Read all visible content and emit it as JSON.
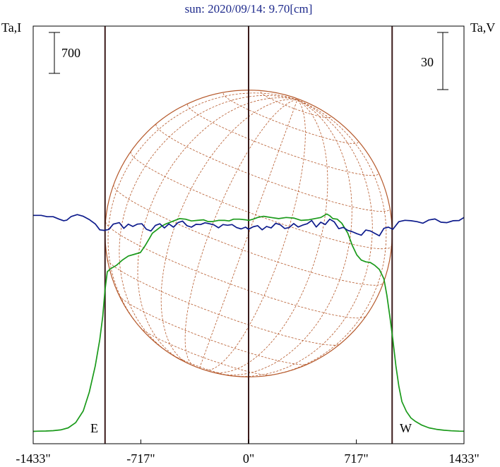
{
  "chart_data": {
    "type": "line",
    "title": "sun: 2020/09/14: 9.70[cm]",
    "left_axis_label": "Ta,I",
    "right_axis_label": "Ta,V",
    "left_scale_bar": "700",
    "right_scale_bar": "30",
    "limb_labels": {
      "east": "E",
      "west": "W"
    },
    "xlim": [
      -1433,
      1433
    ],
    "x_ticks": [
      {
        "value": -1433,
        "label": "-1433\""
      },
      {
        "value": -717,
        "label": "-717\""
      },
      {
        "value": 0,
        "label": "0\""
      },
      {
        "value": 717,
        "label": "717\""
      },
      {
        "value": 1433,
        "label": "1433\""
      }
    ],
    "vertical_markers": [
      -955,
      0,
      955
    ],
    "solar_disk_radius": 955,
    "colors": {
      "intensity": "#1a9a1a",
      "polarization": "#0d1b8c",
      "disk": "#b5582a",
      "frame": "#000000",
      "markers": "#3a1a1a",
      "title": "#1e2a8c"
    },
    "series": [
      {
        "name": "Ta,I",
        "axis": "left",
        "x": [
          -1433,
          -1400,
          -1350,
          -1300,
          -1250,
          -1200,
          -1150,
          -1100,
          -1060,
          -1020,
          -990,
          -970,
          -955,
          -940,
          -920,
          -880,
          -840,
          -800,
          -760,
          -720,
          -690,
          -660,
          -640,
          -610,
          -580,
          -550,
          -520,
          -490,
          -460,
          -420,
          -380,
          -340,
          -300,
          -270,
          -240,
          -200,
          -160,
          -130,
          -100,
          -60,
          -20,
          0,
          30,
          60,
          100,
          150,
          200,
          250,
          300,
          350,
          400,
          440,
          480,
          520,
          540,
          560,
          590,
          620,
          660,
          690,
          720,
          750,
          780,
          810,
          840,
          870,
          900,
          920,
          940,
          960,
          980,
          1000,
          1020,
          1050,
          1080,
          1110,
          1150,
          1200,
          1250,
          1300,
          1350,
          1400,
          1433
        ],
        "y": [
          30,
          34,
          36,
          42,
          55,
          90,
          180,
          380,
          700,
          1150,
          1600,
          2000,
          2450,
          2760,
          2810,
          2870,
          2960,
          3030,
          3060,
          3090,
          3200,
          3330,
          3420,
          3480,
          3540,
          3580,
          3610,
          3640,
          3670,
          3660,
          3630,
          3640,
          3650,
          3620,
          3620,
          3640,
          3640,
          3630,
          3660,
          3660,
          3650,
          3640,
          3660,
          3690,
          3710,
          3690,
          3670,
          3690,
          3680,
          3640,
          3650,
          3670,
          3690,
          3750,
          3720,
          3670,
          3660,
          3590,
          3420,
          3210,
          3050,
          2960,
          2930,
          2920,
          2870,
          2800,
          2640,
          2360,
          1990,
          1600,
          1150,
          800,
          540,
          370,
          260,
          200,
          140,
          90,
          65,
          50,
          40,
          34,
          32
        ]
      },
      {
        "name": "Ta,V",
        "axis": "right",
        "x": [
          -1433,
          -1380,
          -1340,
          -1300,
          -1260,
          -1230,
          -1210,
          -1180,
          -1140,
          -1100,
          -1060,
          -1020,
          -990,
          -960,
          -930,
          -900,
          -860,
          -830,
          -800,
          -770,
          -740,
          -710,
          -680,
          -650,
          -620,
          -590,
          -560,
          -530,
          -500,
          -470,
          -440,
          -410,
          -380,
          -350,
          -320,
          -290,
          -260,
          -230,
          -200,
          -170,
          -140,
          -110,
          -80,
          -50,
          -20,
          0,
          30,
          60,
          90,
          120,
          150,
          180,
          210,
          240,
          270,
          300,
          330,
          360,
          390,
          420,
          450,
          480,
          510,
          540,
          570,
          600,
          630,
          660,
          690,
          720,
          750,
          780,
          810,
          840,
          870,
          900,
          930,
          960,
          1000,
          1040,
          1080,
          1120,
          1160,
          1200,
          1240,
          1280,
          1320,
          1360,
          1400,
          1433
        ],
        "y": [
          1.0,
          1.0,
          0.3,
          0.3,
          -1.0,
          -1.8,
          -1.5,
          0.4,
          1.4,
          0.5,
          -1.2,
          -3.5,
          -6.6,
          -6.9,
          -6.4,
          -3.6,
          -2.8,
          -5.8,
          -3.6,
          -4.8,
          -3.6,
          -3.4,
          -6.3,
          -7.2,
          -4.3,
          -3.4,
          -5.6,
          -3.5,
          -5.2,
          -2.8,
          -2.0,
          -4.4,
          -5.2,
          -3.7,
          -3.8,
          -2.9,
          -3.4,
          -4.0,
          -5.5,
          -3.8,
          -4.2,
          -3.8,
          -5.4,
          -6.1,
          -5.2,
          -6.3,
          -5.0,
          -4.4,
          -6.6,
          -4.8,
          -5.6,
          -3.2,
          -3.9,
          -5.9,
          -5.4,
          -3.3,
          -5.1,
          -4.1,
          -3.4,
          -1.7,
          -5.1,
          -2.6,
          -3.8,
          -1.0,
          -2.4,
          -6.0,
          -5.3,
          -6.9,
          -7.6,
          -8.6,
          -9.4,
          -6.7,
          -7.2,
          -8.5,
          -9.7,
          -5.8,
          -5.2,
          -6.3,
          -2.3,
          -1.6,
          -1.8,
          -2.3,
          -3.1,
          -1.4,
          -0.9,
          -2.6,
          -2.8,
          -1.8,
          -1.7,
          -0.1
        ]
      }
    ]
  }
}
